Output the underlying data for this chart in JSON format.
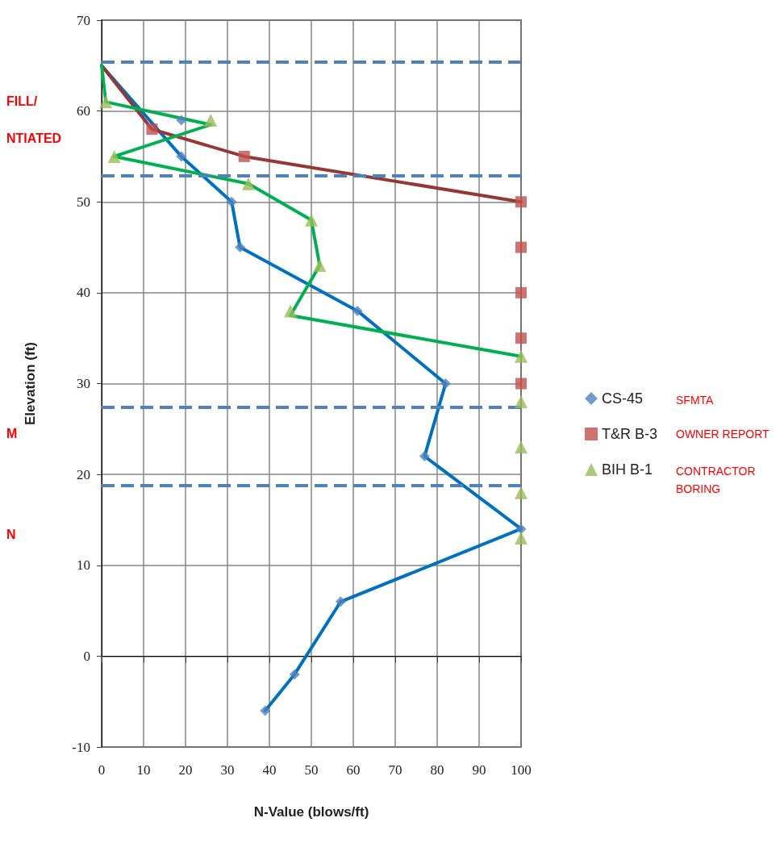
{
  "chart_data": {
    "type": "scatter",
    "xlabel": "N-Value (blows/ft)",
    "ylabel": "Elevation (ft)",
    "xlim": [
      0,
      100
    ],
    "xticks": [
      0,
      10,
      20,
      30,
      40,
      50,
      60,
      70,
      80,
      90,
      100
    ],
    "ylim": [
      -10,
      70
    ],
    "yticks": [
      -10,
      0,
      10,
      20,
      30,
      40,
      50,
      60,
      70
    ],
    "grid": true,
    "legend": "right",
    "series": [
      {
        "type": "line",
        "color": "#0070c0",
        "marker": "none",
        "x": [
          0,
          19,
          31,
          33,
          61,
          82,
          77,
          100,
          57,
          46,
          39
        ],
        "values": [
          65,
          55,
          50,
          45,
          38,
          30,
          22,
          14,
          6,
          -2,
          -6
        ]
      },
      {
        "type": "line",
        "color": "#953735",
        "marker": "none",
        "x": [
          0,
          12,
          34,
          100
        ],
        "values": [
          65,
          58,
          55,
          50
        ]
      },
      {
        "type": "line",
        "color": "#00b050",
        "marker": "none",
        "x": [
          0,
          1,
          26,
          3,
          35,
          50,
          52,
          45,
          100
        ],
        "values": [
          65,
          61,
          58.5,
          55,
          52,
          48,
          43,
          37.5,
          33
        ]
      },
      {
        "name": "CS-45",
        "color": "#4f81bd",
        "marker": "diamond",
        "x": [
          19,
          19,
          31,
          33,
          61,
          82,
          77,
          100,
          57,
          46,
          39
        ],
        "values": [
          59,
          55,
          50,
          45,
          38,
          30,
          22,
          14,
          6,
          -2,
          -6
        ]
      },
      {
        "name": "T&R B-3",
        "color": "#c0504d",
        "marker": "square",
        "x": [
          12,
          34,
          100,
          100,
          100,
          100,
          100
        ],
        "values": [
          58,
          55,
          50,
          45,
          40,
          35,
          30
        ]
      },
      {
        "name": "BIH B-1",
        "color": "#9bbb59",
        "marker": "triangle",
        "x": [
          1,
          26,
          3,
          35,
          50,
          52,
          45,
          100,
          100,
          100,
          100,
          100
        ],
        "values": [
          61,
          59,
          55,
          52,
          48,
          43,
          38,
          33,
          28,
          23,
          18,
          13
        ]
      }
    ],
    "ref_lines": [
      {
        "axis": "y",
        "value": 65.4,
        "color": "#4f81bd",
        "line_style": "dashed"
      },
      {
        "axis": "y",
        "value": 52.9,
        "color": "#4f81bd",
        "line_style": "dashed"
      },
      {
        "axis": "y",
        "value": 27.4,
        "color": "#4f81bd",
        "line_style": "dashed"
      },
      {
        "axis": "y",
        "value": 18.8,
        "color": "#4f81bd",
        "line_style": "dashed"
      }
    ],
    "annotations": [
      "SFMTA",
      "OWNER REPORT",
      "CONTRACTOR\nBORING",
      "FILL/",
      "NTIATED",
      "M",
      "N"
    ]
  }
}
